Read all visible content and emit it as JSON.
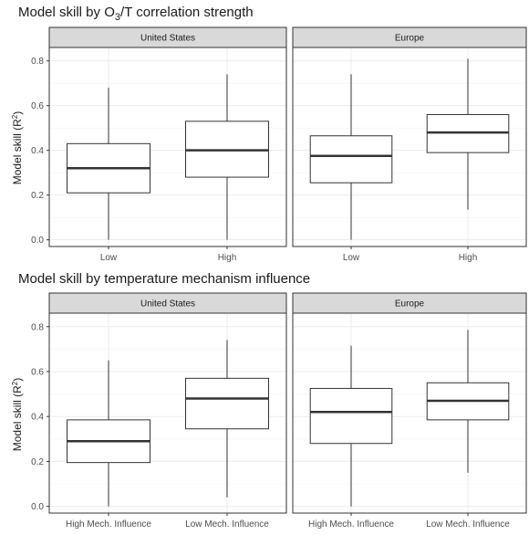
{
  "chart_data": [
    {
      "type": "boxplot",
      "title_main": "Model skill by O",
      "title_sub": "3",
      "title_rest": "/T correlation strength",
      "ylabel": "Model skill (R",
      "ylabel_sup": "2",
      "ylabel_end": ")",
      "ylim": [
        -0.03,
        0.86
      ],
      "yticks": [
        "0.0",
        "0.2",
        "0.4",
        "0.6",
        "0.8"
      ],
      "ytick_values": [
        0.0,
        0.2,
        0.4,
        0.6,
        0.8
      ],
      "grid": true,
      "panels": [
        {
          "strip": "United States",
          "categories": [
            "Low",
            "High"
          ],
          "boxes": [
            {
              "min": 0.0,
              "q1": 0.21,
              "median": 0.32,
              "q3": 0.43,
              "max": 0.68
            },
            {
              "min": 0.0,
              "q1": 0.28,
              "median": 0.4,
              "q3": 0.53,
              "max": 0.74
            }
          ]
        },
        {
          "strip": "Europe",
          "categories": [
            "Low",
            "High"
          ],
          "boxes": [
            {
              "min": 0.0,
              "q1": 0.255,
              "median": 0.375,
              "q3": 0.465,
              "max": 0.74
            },
            {
              "min": 0.135,
              "q1": 0.39,
              "median": 0.48,
              "q3": 0.56,
              "max": 0.81
            }
          ]
        }
      ]
    },
    {
      "type": "boxplot",
      "title_main": "Model skill by temperature mechanism influence",
      "ylabel": "Model skill (R",
      "ylabel_sup": "2",
      "ylabel_end": ")",
      "ylim": [
        -0.03,
        0.86
      ],
      "yticks": [
        "0.0",
        "0.2",
        "0.4",
        "0.6",
        "0.8"
      ],
      "ytick_values": [
        0.0,
        0.2,
        0.4,
        0.6,
        0.8
      ],
      "grid": true,
      "panels": [
        {
          "strip": "United States",
          "categories": [
            "High Mech. Influence",
            "Low Mech. Influence"
          ],
          "boxes": [
            {
              "min": 0.0,
              "q1": 0.195,
              "median": 0.29,
              "q3": 0.385,
              "max": 0.65
            },
            {
              "min": 0.04,
              "q1": 0.345,
              "median": 0.48,
              "q3": 0.57,
              "max": 0.74
            }
          ]
        },
        {
          "strip": "Europe",
          "categories": [
            "High Mech. Influence",
            "Low Mech. Influence"
          ],
          "boxes": [
            {
              "min": 0.0,
              "q1": 0.28,
              "median": 0.42,
              "q3": 0.525,
              "max": 0.715
            },
            {
              "min": 0.15,
              "q1": 0.385,
              "median": 0.47,
              "q3": 0.55,
              "max": 0.785
            }
          ]
        }
      ]
    }
  ]
}
